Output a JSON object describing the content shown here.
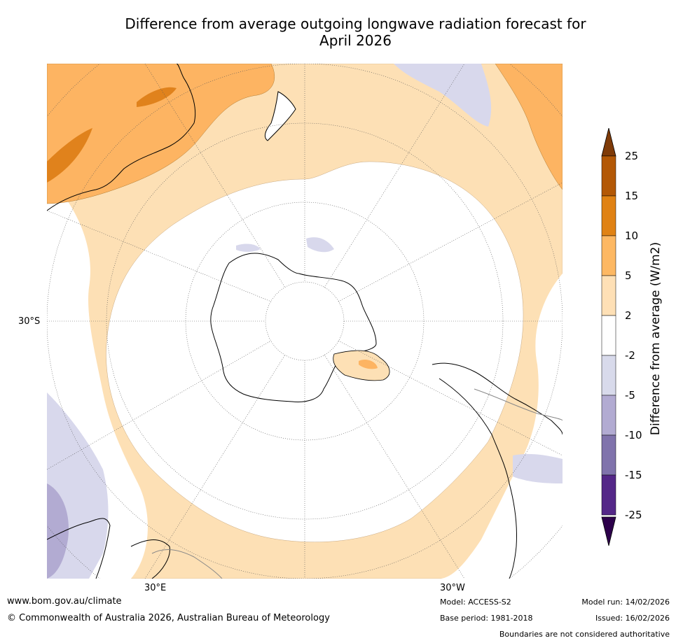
{
  "title_line1": "Difference from average outgoing longwave radiation forecast for",
  "title_line2": "April 2026",
  "map": {
    "lat_label": "30°S",
    "lon_labels": [
      "30°E",
      "30°W"
    ],
    "colors": {
      "ocean_pos_2_5": "#fde0b5",
      "pos_5_10": "#fdb462",
      "pos_10_15": "#e0821c",
      "neg_2_5": "#d8d8ec",
      "neg_5_10": "#b2abd2",
      "coast": "#000000",
      "grid": "#555555"
    }
  },
  "colorbar": {
    "title": "Difference from average (W/m2)",
    "ticks": [
      "25",
      "15",
      "10",
      "5",
      "2",
      "-2",
      "-5",
      "-10",
      "-15",
      "-25"
    ],
    "colors": [
      "#b35806",
      "#e08214",
      "#fdb863",
      "#fee0b6",
      "#ffffff",
      "#d8daeb",
      "#b2abd2",
      "#8073ac",
      "#542788"
    ],
    "over_color": "#7f3b08",
    "under_color": "#2d004b"
  },
  "footer": {
    "website": "www.bom.gov.au/climate",
    "copyright": "© Commonwealth of Australia 2026, Australian Bureau of Meteorology",
    "model": "Model: ACCESS-S2",
    "base_period": "Base period: 1981-2018",
    "model_run": "Model run: 14/02/2026",
    "issued": "Issued: 16/02/2026",
    "disclaimer": "Boundaries are not considered authoritative"
  }
}
